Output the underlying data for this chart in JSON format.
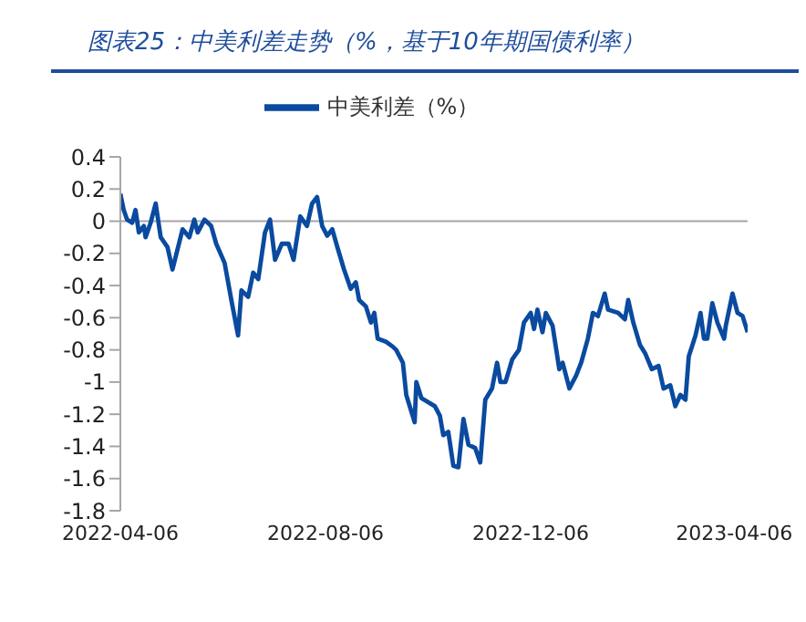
{
  "chart_data": {
    "type": "line",
    "title": "图表25：中美利差走势（%，基于10年期国债利率）",
    "x": [
      "2022-04-06",
      "2022-04-08",
      "2022-04-10",
      "2022-04-13",
      "2022-04-15",
      "2022-04-17",
      "2022-04-20",
      "2022-04-21",
      "2022-04-24",
      "2022-04-27",
      "2022-04-30",
      "2022-05-04",
      "2022-05-07",
      "2022-05-13",
      "2022-05-17",
      "2022-05-20",
      "2022-05-22",
      "2022-05-26",
      "2022-05-30",
      "2022-06-02",
      "2022-06-07",
      "2022-06-11",
      "2022-06-15",
      "2022-06-17",
      "2022-06-21",
      "2022-06-24",
      "2022-06-27",
      "2022-07-01",
      "2022-07-04",
      "2022-07-07",
      "2022-07-11",
      "2022-07-15",
      "2022-07-18",
      "2022-07-22",
      "2022-07-26",
      "2022-07-29",
      "2022-08-01",
      "2022-08-04",
      "2022-08-07",
      "2022-08-10",
      "2022-08-13",
      "2022-08-17",
      "2022-08-21",
      "2022-08-24",
      "2022-08-26",
      "2022-08-30",
      "2022-09-02",
      "2022-09-04",
      "2022-09-06",
      "2022-09-11",
      "2022-09-15",
      "2022-09-17",
      "2022-09-21",
      "2022-09-23",
      "2022-09-28",
      "2022-09-29",
      "2022-10-02",
      "2022-10-10",
      "2022-10-13",
      "2022-10-15",
      "2022-10-18",
      "2022-10-21",
      "2022-10-24",
      "2022-10-27",
      "2022-10-30",
      "2022-11-03",
      "2022-11-06",
      "2022-11-09",
      "2022-11-13",
      "2022-11-16",
      "2022-11-18",
      "2022-11-21",
      "2022-11-25",
      "2022-11-29",
      "2022-12-02",
      "2022-12-06",
      "2022-12-08",
      "2022-12-10",
      "2022-12-13",
      "2022-12-15",
      "2022-12-19",
      "2022-12-23",
      "2022-12-25",
      "2022-12-29",
      "2023-01-02",
      "2023-01-05",
      "2023-01-09",
      "2023-01-12",
      "2023-01-15",
      "2023-01-19",
      "2023-01-21",
      "2023-01-27",
      "2023-01-31",
      "2023-02-02",
      "2023-02-05",
      "2023-02-09",
      "2023-02-12",
      "2023-02-16",
      "2023-02-20",
      "2023-02-23",
      "2023-02-27",
      "2023-03-02",
      "2023-03-05",
      "2023-03-08",
      "2023-03-10",
      "2023-03-14",
      "2023-03-17",
      "2023-03-19",
      "2023-03-21",
      "2023-03-24",
      "2023-03-27",
      "2023-03-31",
      "2023-04-01",
      "2023-04-05",
      "2023-04-08",
      "2023-04-11",
      "2023-04-14"
    ],
    "series": [
      {
        "name": "中美利差（%）",
        "color": "#0a4a9f",
        "values": [
          0.17,
          0.07,
          0.01,
          -0.01,
          0.07,
          -0.07,
          -0.03,
          -0.1,
          -0.01,
          0.11,
          -0.1,
          -0.16,
          -0.3,
          -0.05,
          -0.1,
          0.01,
          -0.07,
          0.01,
          -0.03,
          -0.14,
          -0.26,
          -0.49,
          -0.71,
          -0.43,
          -0.47,
          -0.32,
          -0.36,
          -0.07,
          0.01,
          -0.24,
          -0.14,
          -0.14,
          -0.24,
          0.03,
          -0.03,
          0.11,
          0.15,
          -0.03,
          -0.09,
          -0.05,
          -0.16,
          -0.3,
          -0.42,
          -0.38,
          -0.49,
          -0.53,
          -0.63,
          -0.57,
          -0.73,
          -0.75,
          -0.78,
          -0.8,
          -0.88,
          -1.08,
          -1.25,
          -1,
          -1.1,
          -1.15,
          -1.21,
          -1.33,
          -1.31,
          -1.52,
          -1.53,
          -1.23,
          -1.39,
          -1.41,
          -1.5,
          -1.11,
          -1.04,
          -0.88,
          -1,
          -1,
          -0.86,
          -0.8,
          -0.63,
          -0.57,
          -0.67,
          -0.55,
          -0.69,
          -0.57,
          -0.65,
          -0.92,
          -0.88,
          -1.04,
          -0.96,
          -0.88,
          -0.73,
          -0.57,
          -0.59,
          -0.45,
          -0.55,
          -0.57,
          -0.61,
          -0.49,
          -0.63,
          -0.77,
          -0.82,
          -0.92,
          -0.9,
          -1.04,
          -1.02,
          -1.15,
          -1.08,
          -1.11,
          -0.84,
          -0.71,
          -0.57,
          -0.73,
          -0.73,
          -0.51,
          -0.63,
          -0.73,
          -0.65,
          -0.45,
          -0.57,
          -0.59,
          -0.69
        ]
      }
    ],
    "xlim": [
      "2022-04-06",
      "2023-04-14"
    ],
    "xticks": [
      "2022-04-06",
      "2022-08-06",
      "2022-12-06",
      "2023-04-06"
    ],
    "ylim": [
      -1.8,
      0.4
    ],
    "yticks": [
      0.4,
      0.2,
      0,
      -0.2,
      -0.4,
      -0.6,
      -0.8,
      -1,
      -1.2,
      -1.4,
      -1.6,
      -1.8
    ],
    "ref_lines": [
      {
        "axis": "y",
        "value": 0,
        "color": "#a6a6a6"
      }
    ],
    "legend": "top"
  }
}
